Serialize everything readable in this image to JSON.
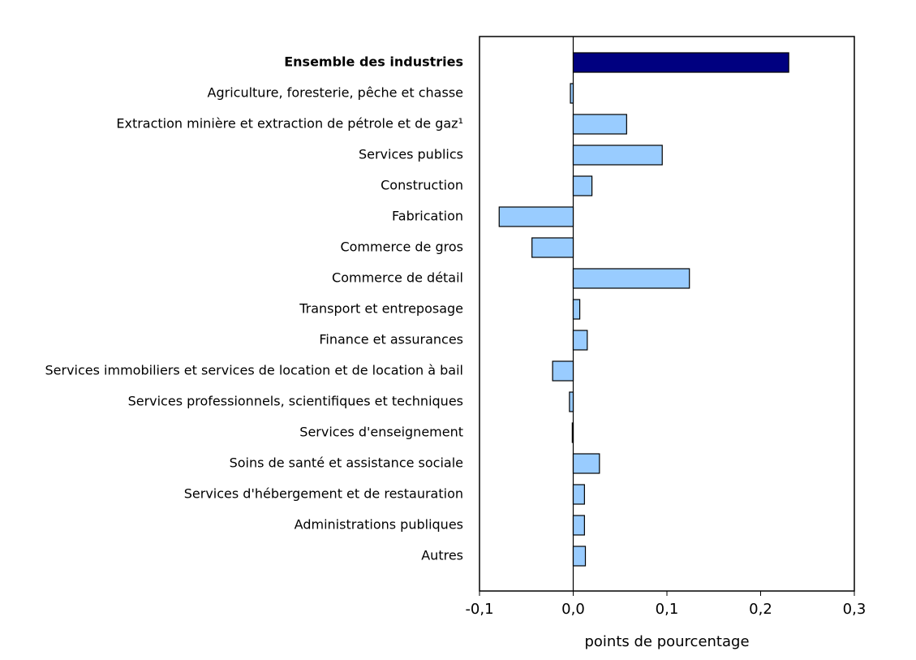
{
  "chart_data": {
    "type": "hbar",
    "categories": [
      "Ensemble des industries",
      "Agriculture, foresterie, pêche et chasse",
      "Extraction minière et extraction de pétrole et de gaz¹",
      "Services publics",
      "Construction",
      "Fabrication",
      "Commerce de gros",
      "Commerce de détail",
      "Transport et entreposage",
      "Finance et assurances",
      "Services immobiliers et services de location et de location à bail",
      "Services professionnels, scientifiques et techniques",
      "Services d'enseignement",
      "Soins de santé et assistance sociale",
      "Services d'hébergement et de restauration",
      "Administrations publiques",
      "Autres"
    ],
    "values": [
      0.23,
      -0.003,
      0.057,
      0.095,
      0.02,
      -0.079,
      -0.044,
      0.124,
      0.007,
      0.015,
      -0.022,
      -0.004,
      -0.001,
      0.028,
      0.012,
      0.012,
      0.013
    ],
    "colors": [
      "#000080",
      "#99ccff",
      "#99ccff",
      "#99ccff",
      "#99ccff",
      "#99ccff",
      "#99ccff",
      "#99ccff",
      "#99ccff",
      "#99ccff",
      "#99ccff",
      "#99ccff",
      "#99ccff",
      "#99ccff",
      "#99ccff",
      "#99ccff",
      "#99ccff"
    ],
    "bold": [
      true,
      false,
      false,
      false,
      false,
      false,
      false,
      false,
      false,
      false,
      false,
      false,
      false,
      false,
      false,
      false,
      false
    ],
    "xlim": [
      -0.1,
      0.3
    ],
    "xticks": [
      {
        "value": -0.1,
        "label": "-0,1"
      },
      {
        "value": 0,
        "label": "0,0"
      },
      {
        "value": 0.1,
        "label": "0,1"
      },
      {
        "value": 0.2,
        "label": "0,2"
      },
      {
        "value": 0.3,
        "label": "0,3"
      }
    ],
    "x_label": "points de pourcentage"
  }
}
